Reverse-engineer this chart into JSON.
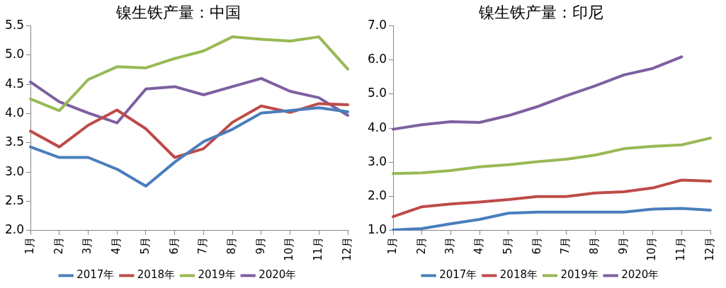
{
  "chart_data": [
    {
      "type": "line",
      "title": "镍生铁产量：中国",
      "categories": [
        "1月",
        "2月",
        "3月",
        "4月",
        "5月",
        "6月",
        "7月",
        "8月",
        "9月",
        "10月",
        "11月",
        "12月"
      ],
      "ylim": [
        2,
        5.5
      ],
      "yticks": [
        {
          "value": 2,
          "label": "2.0"
        },
        {
          "value": 2.5,
          "label": "2.5"
        },
        {
          "value": 3,
          "label": "3.0"
        },
        {
          "value": 3.5,
          "label": "3.5"
        },
        {
          "value": 4,
          "label": "4.0"
        },
        {
          "value": 4.5,
          "label": "4.5"
        },
        {
          "value": 5,
          "label": "5.0"
        },
        {
          "value": 5.5,
          "label": "5.5"
        }
      ],
      "legend": "bottom",
      "marker": "none",
      "line_style": "solid",
      "series": [
        {
          "name": "2017年",
          "color": "#4a7ebb",
          "values": [
            3.43,
            3.25,
            3.25,
            3.05,
            2.76,
            3.17,
            3.52,
            3.73,
            4.01,
            4.05,
            4.1,
            4.03
          ]
        },
        {
          "name": "2018年",
          "color": "#be4b48",
          "values": [
            3.7,
            3.43,
            3.8,
            4.06,
            3.74,
            3.25,
            3.4,
            3.85,
            4.13,
            4.02,
            4.17,
            4.15
          ]
        },
        {
          "name": "2019年",
          "color": "#98b954",
          "values": [
            4.25,
            4.05,
            4.58,
            4.8,
            4.78,
            4.94,
            5.07,
            5.31,
            5.27,
            5.24,
            5.31,
            4.76
          ]
        },
        {
          "name": "2020年",
          "color": "#7d60a0",
          "values": [
            4.54,
            4.2,
            4.01,
            3.84,
            4.42,
            4.46,
            4.32,
            4.46,
            4.6,
            4.38,
            4.27,
            3.97
          ]
        }
      ]
    },
    {
      "type": "line",
      "title": "镍生铁产量：印尼",
      "categories": [
        "1月",
        "2月",
        "3月",
        "4月",
        "5月",
        "6月",
        "7月",
        "8月",
        "9月",
        "10月",
        "11月",
        "12月"
      ],
      "ylim": [
        1,
        7
      ],
      "yticks": [
        {
          "value": 1,
          "label": "1.0"
        },
        {
          "value": 2,
          "label": "2.0"
        },
        {
          "value": 3,
          "label": "3.0"
        },
        {
          "value": 4,
          "label": "4.0"
        },
        {
          "value": 5,
          "label": "5.0"
        },
        {
          "value": 6,
          "label": "6.0"
        },
        {
          "value": 7,
          "label": "7.0"
        }
      ],
      "legend": "bottom",
      "marker": "none",
      "line_style": "solid",
      "series": [
        {
          "name": "2017年",
          "color": "#4a7ebb",
          "values": [
            1.02,
            1.06,
            1.2,
            1.33,
            1.51,
            1.54,
            1.54,
            1.54,
            1.54,
            1.63,
            1.65,
            1.6
          ]
        },
        {
          "name": "2018年",
          "color": "#be4b48",
          "values": [
            1.41,
            1.7,
            1.78,
            1.84,
            1.91,
            2.0,
            2.0,
            2.1,
            2.14,
            2.25,
            2.48,
            2.45
          ]
        },
        {
          "name": "2019年",
          "color": "#98b954",
          "values": [
            2.67,
            2.69,
            2.76,
            2.87,
            2.93,
            3.02,
            3.09,
            3.21,
            3.4,
            3.47,
            3.51,
            3.71
          ]
        },
        {
          "name": "2020年",
          "color": "#7d60a0",
          "values": [
            3.97,
            4.1,
            4.19,
            4.17,
            4.37,
            4.63,
            4.95,
            5.24,
            5.56,
            5.75,
            6.09,
            null
          ]
        }
      ]
    }
  ]
}
